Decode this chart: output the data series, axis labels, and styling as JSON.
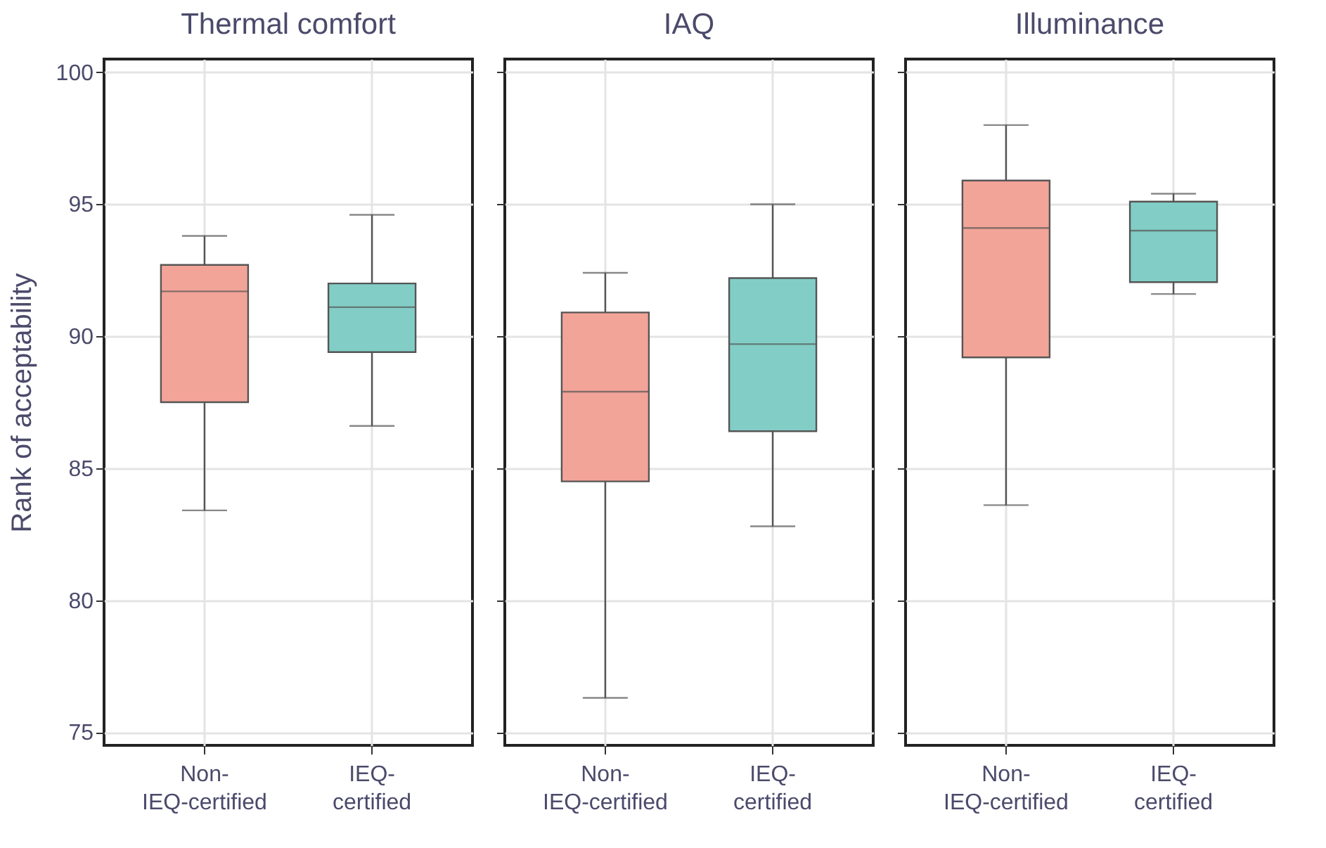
{
  "chart_data": [
    {
      "type": "box",
      "title": "Thermal comfort",
      "ylabel": "Rank of acceptability",
      "categories": [
        "Non-IEQ-certified",
        "IEQ-certified"
      ],
      "colors": [
        "#f3a498",
        "#82cec6"
      ],
      "ylim": [
        74.5,
        100.5
      ],
      "yticks": [
        75,
        80,
        85,
        90,
        95,
        100
      ],
      "grid": true,
      "boxes": [
        {
          "low": 83.4,
          "q1": 87.5,
          "median": 91.7,
          "q3": 92.7,
          "high": 93.8
        },
        {
          "low": 86.6,
          "q1": 89.4,
          "median": 91.1,
          "q3": 92.0,
          "high": 94.6
        }
      ]
    },
    {
      "type": "box",
      "title": "IAQ",
      "categories": [
        "Non-IEQ-certified",
        "IEQ-certified"
      ],
      "colors": [
        "#f3a498",
        "#82cec6"
      ],
      "ylim": [
        74.5,
        100.5
      ],
      "yticks": [
        75,
        80,
        85,
        90,
        95,
        100
      ],
      "grid": true,
      "tick_labels": "x",
      "boxes": [
        {
          "low": 76.3,
          "q1": 84.5,
          "median": 87.9,
          "q3": 90.9,
          "high": 92.4
        },
        {
          "low": 82.8,
          "q1": 86.4,
          "median": 89.7,
          "q3": 92.2,
          "high": 95.0
        }
      ]
    },
    {
      "type": "box",
      "title": "Illuminance",
      "categories": [
        "Non-IEQ-certified",
        "IEQ-certified"
      ],
      "colors": [
        "#f3a498",
        "#82cec6"
      ],
      "ylim": [
        74.5,
        100.5
      ],
      "yticks": [
        75,
        80,
        85,
        90,
        95,
        100
      ],
      "grid": true,
      "tick_labels": "x",
      "boxes": [
        {
          "low": 83.6,
          "q1": 89.2,
          "median": 94.1,
          "q3": 95.9,
          "high": 98.0
        },
        {
          "low": 91.6,
          "q1": 92.05,
          "median": 94.0,
          "q3": 95.1,
          "high": 95.4
        }
      ]
    }
  ]
}
